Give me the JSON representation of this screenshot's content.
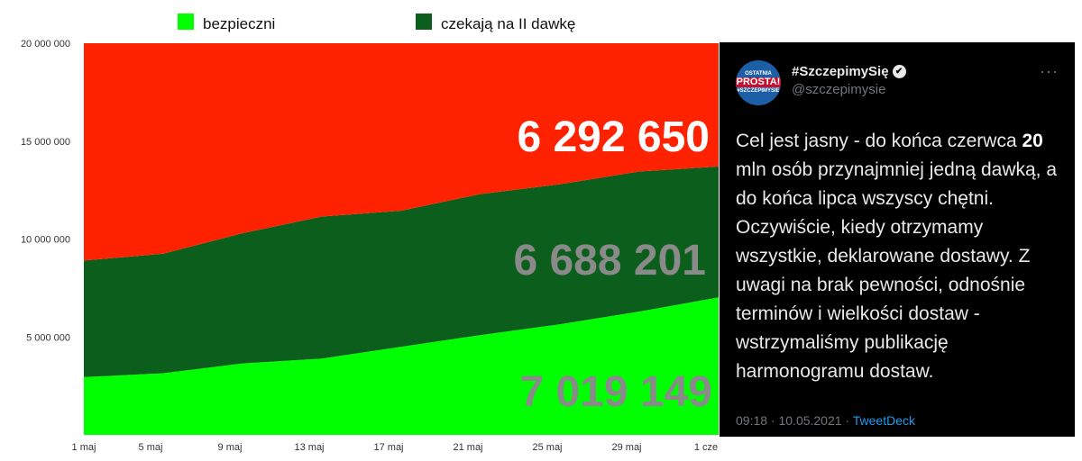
{
  "chart_data": {
    "type": "area",
    "stacked": true,
    "x": [
      "1 maj",
      "5 maj",
      "9 maj",
      "13 maj",
      "17 maj",
      "21 maj",
      "25 maj",
      "29 maj",
      "1 cze"
    ],
    "ylim": [
      0,
      20000000
    ],
    "yticks": [
      {
        "value": 5000000,
        "label": "5 000 000"
      },
      {
        "value": 10000000,
        "label": "10 000 000"
      },
      {
        "value": 15000000,
        "label": "15 000 000"
      },
      {
        "value": 20000000,
        "label": "20 000 000"
      }
    ],
    "series": [
      {
        "name": "bezpieczni",
        "color": "#00ff00",
        "values": [
          2950000,
          3150000,
          3650000,
          3900000,
          4500000,
          5100000,
          5650000,
          6300000,
          7019149
        ]
      },
      {
        "name": "czekają na II dawkę",
        "color": "#0b5e1c",
        "values": [
          5950000,
          6100000,
          6650000,
          7250000,
          6950000,
          7200000,
          7150000,
          7150000,
          6688201
        ]
      },
      {
        "color": "#ff2200",
        "values": [
          11100000,
          10750000,
          9700000,
          8850000,
          8550000,
          7700000,
          7200000,
          6550000,
          6292650
        ]
      }
    ],
    "annotations": [
      {
        "text": "6 292 650",
        "color": "#ffffff"
      },
      {
        "text": "6 688 201",
        "color": "#8a8a8a"
      },
      {
        "text": "7 019 149",
        "color": "#8a8a8a"
      }
    ],
    "legend": [
      {
        "label": "bezpieczni",
        "color": "#00ff00"
      },
      {
        "label": "czekają na II dawkę",
        "color": "#0b5e1c"
      }
    ],
    "legend_position": "top"
  },
  "tweet": {
    "avatar": {
      "line1": "OSTATNIA",
      "line2": "PROSTA!",
      "line3": "#SZCZEPIMYSIE"
    },
    "name": "#SzczepimySię",
    "verified_icon": "✔",
    "handle": "@szczepimysie",
    "more": "···",
    "text_before": "Cel jest jasny - do końca czerwca ",
    "text_bold": "20",
    "text_after": " mln osób przynajmniej jedną dawką, a do końca lipca wszyscy chętni. Oczywiście, kiedy otrzymamy wszystkie, deklarowane dostawy. Z uwagi na brak pewności, odnośnie terminów i wielkości dostaw - wstrzymaliśmy publikację harmonogramu dostaw.",
    "timestamp": "09:18 · 10.05.2021 · ",
    "source": "TweetDeck"
  }
}
